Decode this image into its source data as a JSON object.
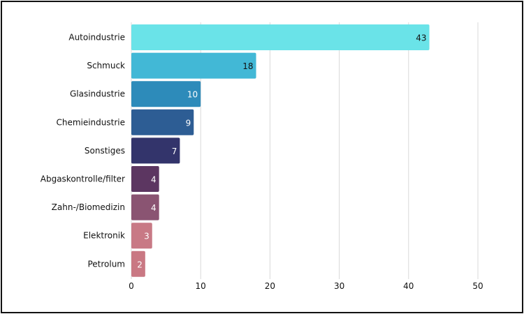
{
  "chart_data": {
    "type": "bar",
    "orientation": "horizontal",
    "categories": [
      "Autoindustrie",
      "Schmuck",
      "Glasindustrie",
      "Chemieindustrie",
      "Sonstiges",
      "Abgaskontrolle/filter",
      "Zahn-/Biomedizin",
      "Elektronik",
      "Petrolum"
    ],
    "values": [
      43,
      18,
      10,
      9,
      7,
      4,
      4,
      3,
      2
    ],
    "colors": [
      "#6ae3e8",
      "#42b8d6",
      "#2d8bba",
      "#2d5d94",
      "#33346b",
      "#5c3661",
      "#8a5472",
      "#c87985",
      "#c97883"
    ],
    "label_colors": [
      "#111111",
      "#111111",
      "#ffffff",
      "#ffffff",
      "#ffffff",
      "#ffffff",
      "#ffffff",
      "#ffffff",
      "#ffffff"
    ],
    "xlim": [
      0,
      50
    ],
    "xticks": [
      "0",
      "10",
      "20",
      "30",
      "40",
      "50"
    ],
    "grid": true,
    "title": "",
    "xlabel": "",
    "ylabel": ""
  }
}
